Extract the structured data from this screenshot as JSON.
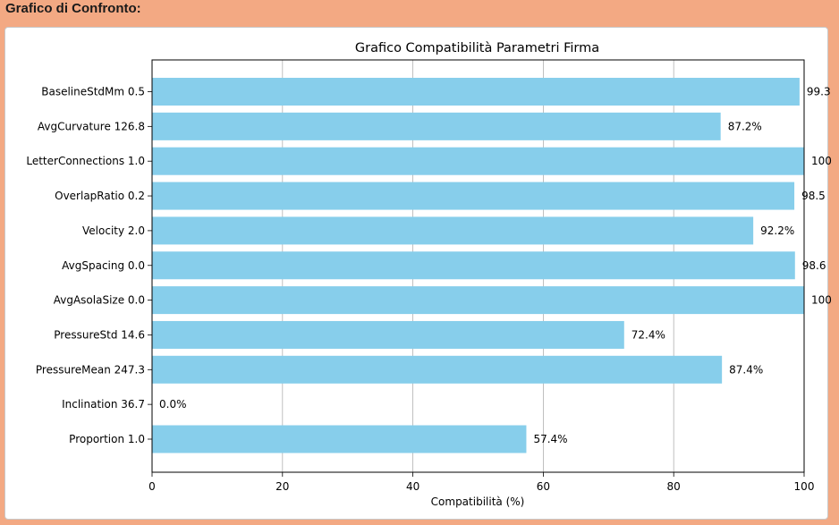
{
  "header": {
    "title": "Grafico di Confronto:"
  },
  "chart_data": {
    "type": "bar",
    "orientation": "horizontal",
    "title": "Grafico Compatibilità Parametri Firma",
    "xlabel": "Compatibilità (%)",
    "ylabel": "",
    "xlim": [
      0,
      100
    ],
    "xticks": [
      "0",
      "20",
      "40",
      "60",
      "80",
      "100"
    ],
    "grid": "vertical",
    "bar_color": "#87ceeb",
    "categories": [
      "Proportion 1.0",
      "Inclination 36.7",
      "PressureMean 247.3",
      "PressureStd 14.6",
      "AvgAsolaSize 0.0",
      "AvgSpacing 0.0",
      "Velocity 2.0",
      "OverlapRatio 0.2",
      "LetterConnections 1.0",
      "AvgCurvature 126.8",
      "BaselineStdMm 0.5"
    ],
    "values": [
      57.4,
      0.0,
      87.4,
      72.4,
      100,
      98.6,
      92.2,
      98.5,
      100,
      87.2,
      99.3
    ],
    "value_labels": [
      "57.4%",
      "0.0%",
      "87.4%",
      "72.4%",
      "100",
      "98.6",
      "92.2%",
      "98.5",
      "100",
      "87.2%",
      "99.3"
    ]
  }
}
